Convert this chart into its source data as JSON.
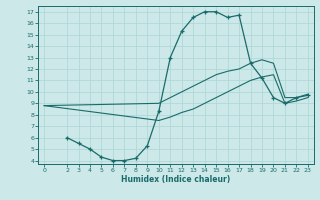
{
  "xlabel": "Humidex (Indice chaleur)",
  "bg_color": "#cce8e8",
  "grid_color": "#b0d8d8",
  "line_color": "#1a6b6b",
  "xlim": [
    -0.5,
    23.5
  ],
  "ylim": [
    3.7,
    17.5
  ],
  "xticks": [
    0,
    2,
    3,
    4,
    5,
    6,
    7,
    8,
    9,
    10,
    11,
    12,
    13,
    14,
    15,
    16,
    17,
    18,
    19,
    20,
    21,
    22,
    23
  ],
  "yticks": [
    4,
    5,
    6,
    7,
    8,
    9,
    10,
    11,
    12,
    13,
    14,
    15,
    16,
    17
  ],
  "line1_x": [
    2,
    3,
    4,
    5,
    6,
    7,
    8,
    9,
    10,
    11,
    12,
    13,
    14,
    15,
    16,
    17,
    18,
    19,
    20,
    21,
    22,
    23
  ],
  "line1_y": [
    6.0,
    5.5,
    5.0,
    4.3,
    4.0,
    4.0,
    4.2,
    5.3,
    8.3,
    13.0,
    15.3,
    16.5,
    17.0,
    17.0,
    16.5,
    16.7,
    12.5,
    11.2,
    9.5,
    9.0,
    9.5,
    9.7
  ],
  "line2_x": [
    0,
    10,
    11,
    12,
    13,
    14,
    15,
    16,
    17,
    18,
    19,
    20,
    21,
    22,
    23
  ],
  "line2_y": [
    8.8,
    9.0,
    9.5,
    10.0,
    10.5,
    11.0,
    11.5,
    11.8,
    12.0,
    12.5,
    12.8,
    12.5,
    9.5,
    9.5,
    9.8
  ],
  "line3_x": [
    0,
    10,
    11,
    12,
    13,
    14,
    15,
    16,
    17,
    18,
    19,
    20,
    21,
    22,
    23
  ],
  "line3_y": [
    8.8,
    7.5,
    7.8,
    8.2,
    8.5,
    9.0,
    9.5,
    10.0,
    10.5,
    11.0,
    11.3,
    11.5,
    9.0,
    9.2,
    9.5
  ]
}
